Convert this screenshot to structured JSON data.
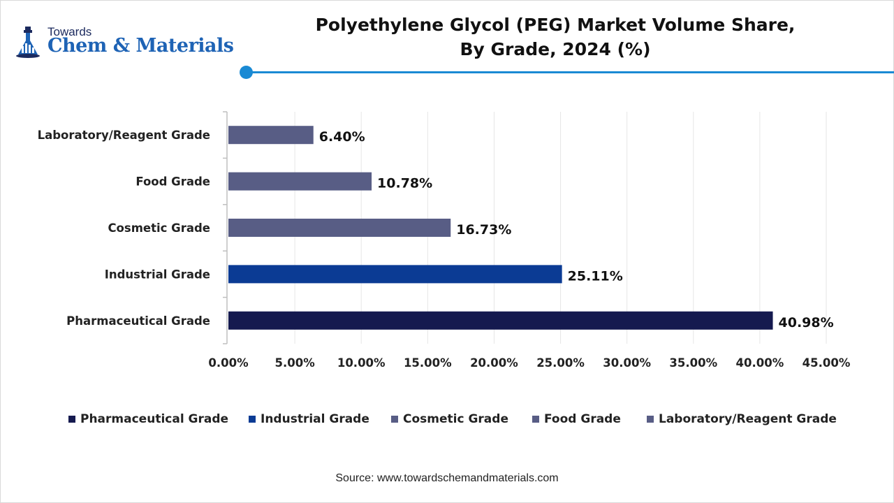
{
  "brand": {
    "top": "Towards",
    "main": "Chem & Materials"
  },
  "title_line1": "Polyethylene Glycol (PEG) Market Volume Share,",
  "title_line2": "By Grade, 2024 (%)",
  "colors": {
    "accent": "#1a8ad4",
    "pharmaceutical": "#151a4f",
    "industrial": "#0b3b94",
    "cosmetic": "#585d85",
    "food": "#585d85",
    "laboratory": "#585d85"
  },
  "chart_data": {
    "type": "bar",
    "orientation": "horizontal",
    "categories": [
      "Laboratory/Reagent Grade",
      "Food Grade",
      "Cosmetic Grade",
      "Industrial Grade",
      "Pharmaceutical Grade"
    ],
    "values": [
      6.4,
      10.78,
      16.73,
      25.11,
      40.98
    ],
    "data_labels": [
      "6.40%",
      "10.78%",
      "16.73%",
      "25.11%",
      "40.98%"
    ],
    "bar_colors": [
      "#585d85",
      "#585d85",
      "#585d85",
      "#0b3b94",
      "#151a4f"
    ],
    "xlim": [
      0,
      45
    ],
    "xticks": [
      0,
      5,
      10,
      15,
      20,
      25,
      30,
      35,
      40,
      45
    ],
    "xtick_labels": [
      "0.00%",
      "5.00%",
      "10.00%",
      "15.00%",
      "20.00%",
      "25.00%",
      "30.00%",
      "35.00%",
      "40.00%",
      "45.00%"
    ],
    "grid": true,
    "legend_position": "bottom",
    "legend": [
      {
        "label": "Pharmaceutical Grade",
        "color": "#151a4f"
      },
      {
        "label": "Industrial Grade",
        "color": "#0b3b94"
      },
      {
        "label": "Cosmetic Grade",
        "color": "#585d85"
      },
      {
        "label": "Food Grade",
        "color": "#585d85"
      },
      {
        "label": "Laboratory/Reagent Grade",
        "color": "#585d85"
      }
    ]
  },
  "source": "Source: www.towardschemandmaterials.com"
}
